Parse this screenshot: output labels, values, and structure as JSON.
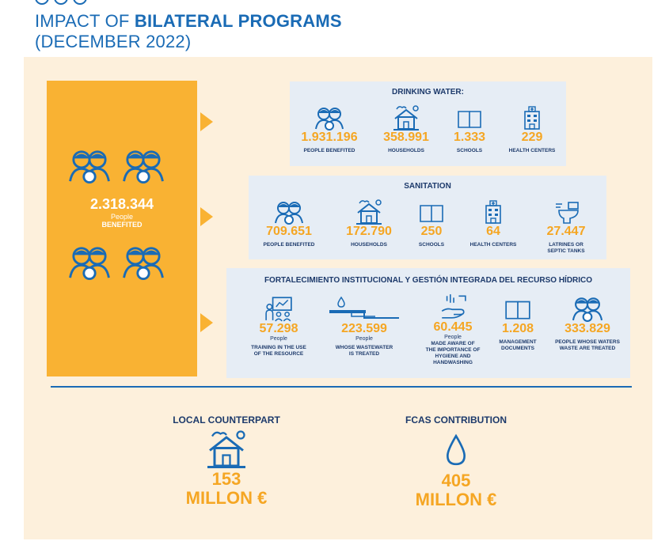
{
  "header": {
    "title_prefix": "IMPACT OF ",
    "title_bold": "BILATERAL PROGRAMS",
    "subtitle": "(DECEMBER 2022)"
  },
  "summary": {
    "value": "2.318.344",
    "label_line1": "People",
    "label_line2": "BENEFITED"
  },
  "drinking_water": {
    "title": "DRINKING WATER:",
    "stats": [
      {
        "value": "1.931.196",
        "label": "PEOPLE BENEFITED",
        "icon": "people-icon"
      },
      {
        "value": "358.991",
        "label": "HOUSEHOLDS",
        "icon": "house-icon"
      },
      {
        "value": "1.333",
        "label": "SCHOOLS",
        "icon": "book-icon"
      },
      {
        "value": "229",
        "label": "HEALTH CENTERS",
        "icon": "hospital-icon"
      }
    ]
  },
  "sanitation": {
    "title": "SANITATION",
    "stats": [
      {
        "value": "709.651",
        "label": "PEOPLE BENEFITED",
        "icon": "people-icon"
      },
      {
        "value": "172.790",
        "label": "HOUSEHOLDS",
        "icon": "house-icon"
      },
      {
        "value": "250",
        "label": "SCHOOLS",
        "icon": "book-icon"
      },
      {
        "value": "64",
        "label": "HEALTH CENTERS",
        "icon": "hospital-icon"
      },
      {
        "value": "27.447",
        "label_line1": "LATRINES OR",
        "label_line2": "SEPTIC TANKS",
        "icon": "toilet-icon"
      }
    ]
  },
  "institutional": {
    "title": "FORTALECIMIENTO INSTITUCIONAL Y GESTIÓN INTEGRADA DEL RECURSO HÍDRICO",
    "stats": [
      {
        "value": "57.298",
        "sub": "People",
        "label_line1": "TRAINING IN THE USE",
        "label_line2": "OF THE RESOURCE",
        "icon": "training-icon"
      },
      {
        "value": "223.599",
        "sub": "People",
        "label_line1": "WHOSE WASTEWATER",
        "label_line2": "IS TREATED",
        "icon": "water-treatment-icon"
      },
      {
        "value": "60.445",
        "sub": "People",
        "label_line1": "MADE AWARE OF",
        "label_line2": "THE IMPORTANCE OF",
        "label_line3": "HYGIENE AND",
        "label_line4": "HANDWASHING",
        "icon": "handwashing-icon"
      },
      {
        "value": "1.208",
        "label_line1": "MANAGEMENT",
        "label_line2": "DOCUMENTS",
        "icon": "book-icon"
      },
      {
        "value": "333.829",
        "label_line1": "PEOPLE WHOSE WATERS",
        "label_line2": "WASTE ARE TREATED",
        "icon": "people-icon"
      }
    ]
  },
  "local_counterpart": {
    "title": "LOCAL COUNTERPART",
    "value": "153",
    "unit": "MILLON €",
    "icon": "house-icon"
  },
  "fcas": {
    "title": "FCAS CONTRIBUTION",
    "value": "405",
    "unit": "MILLON €",
    "icon": "water-drop-icon"
  },
  "colors": {
    "blue": "#1a6bb5",
    "dark_blue": "#1d3a6b",
    "orange": "#f5a623",
    "panel": "#fdf0dc",
    "card": "#e6edf5"
  }
}
